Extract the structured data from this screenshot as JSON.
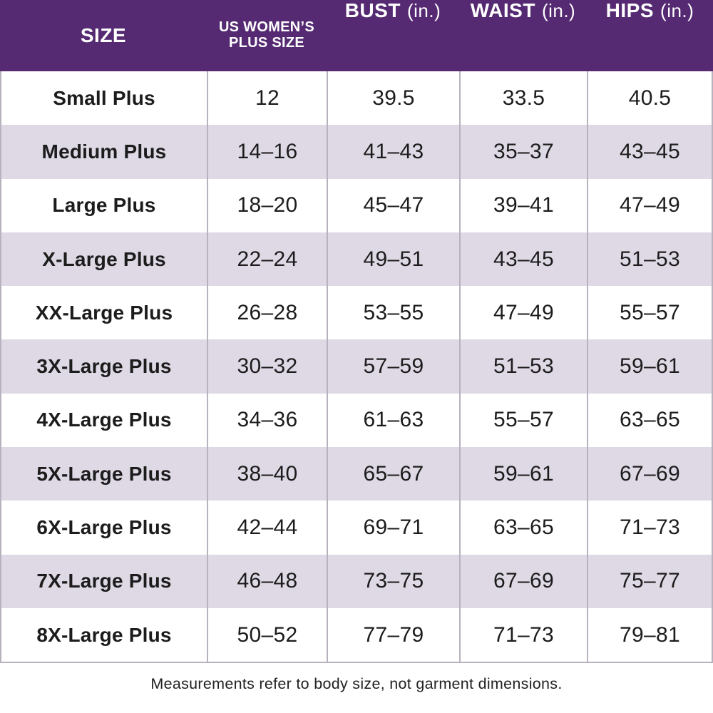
{
  "table": {
    "columns": [
      {
        "label": "SIZE"
      },
      {
        "label_line1": "US WOMEN’S",
        "label_line2": "PLUS SIZE"
      },
      {
        "label": "BUST",
        "unit": "(in.)"
      },
      {
        "label": "WAIST",
        "unit": "(in.)"
      },
      {
        "label": "HIPS",
        "unit": "(in.)"
      }
    ],
    "rows": [
      {
        "size": "Small Plus",
        "us_plus_size": "12",
        "bust": "39.5",
        "waist": "33.5",
        "hips": "40.5"
      },
      {
        "size": "Medium Plus",
        "us_plus_size": "14–16",
        "bust": "41–43",
        "waist": "35–37",
        "hips": "43–45"
      },
      {
        "size": "Large Plus",
        "us_plus_size": "18–20",
        "bust": "45–47",
        "waist": "39–41",
        "hips": "47–49"
      },
      {
        "size": "X-Large Plus",
        "us_plus_size": "22–24",
        "bust": "49–51",
        "waist": "43–45",
        "hips": "51–53"
      },
      {
        "size": "XX-Large Plus",
        "us_plus_size": "26–28",
        "bust": "53–55",
        "waist": "47–49",
        "hips": "55–57"
      },
      {
        "size": "3X-Large Plus",
        "us_plus_size": "30–32",
        "bust": "57–59",
        "waist": "51–53",
        "hips": "59–61"
      },
      {
        "size": "4X-Large Plus",
        "us_plus_size": "34–36",
        "bust": "61–63",
        "waist": "55–57",
        "hips": "63–65"
      },
      {
        "size": "5X-Large Plus",
        "us_plus_size": "38–40",
        "bust": "65–67",
        "waist": "59–61",
        "hips": "67–69"
      },
      {
        "size": "6X-Large Plus",
        "us_plus_size": "42–44",
        "bust": "69–71",
        "waist": "63–65",
        "hips": "71–73"
      },
      {
        "size": "7X-Large Plus",
        "us_plus_size": "46–48",
        "bust": "73–75",
        "waist": "67–69",
        "hips": "75–77"
      },
      {
        "size": "8X-Large Plus",
        "us_plus_size": "50–52",
        "bust": "77–79",
        "waist": "71–73",
        "hips": "79–81"
      }
    ]
  },
  "footnote": "Measurements refer to body size, not garment dimensions.",
  "colors": {
    "header_bg": "#552a72",
    "header_text": "#ffffff",
    "row_alt_bg": "#ded9e5",
    "divider": "#b8b2be",
    "body_text": "#1c1c1c"
  }
}
